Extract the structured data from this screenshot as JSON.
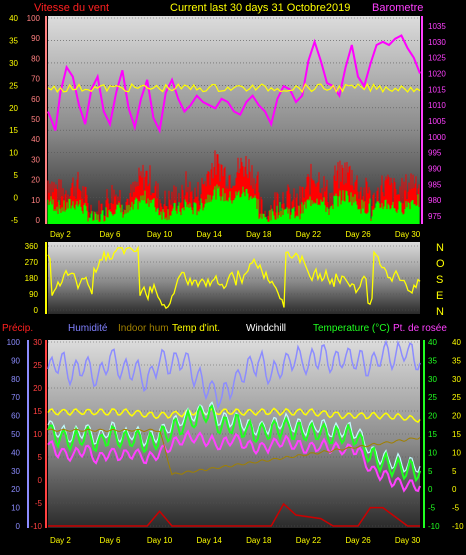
{
  "header": {
    "wind_speed_label": "Vitesse du vent",
    "title": "Current last 30 days 31 Octobre2019",
    "barometer_label": "Barometre"
  },
  "direction_letters": [
    "N",
    "O",
    "S",
    "E",
    "N"
  ],
  "bottom_legend": [
    {
      "label": "Précip.",
      "color": "#ff2020"
    },
    {
      "label": "Humidité",
      "color": "#8080ff"
    },
    {
      "label": "Indoor hum",
      "color": "#a08000"
    },
    {
      "label": "Temp d'int.",
      "color": "#ffff00"
    },
    {
      "label": "Windchill",
      "color": "#ffffff"
    },
    {
      "label": "Temperature (°C)",
      "color": "#20ff20"
    },
    {
      "label": "Pt. de rosée",
      "color": "#ff40ff"
    }
  ],
  "colors": {
    "wind_gust": "#ff0000",
    "wind_avg": "#00ff00",
    "barometer": "#ff00ff",
    "direction": "#ffff00",
    "humidity": "#8c8cff",
    "indoor_hum": "#a08000",
    "indoor_temp": "#ffff00",
    "windchill": "#c0ffff",
    "temperature": "#20ff20",
    "dewpoint": "#ff40ff",
    "precip": "#cc0000"
  },
  "chart_data": [
    {
      "type": "line",
      "name": "wind-barometer",
      "x_tick_labels": [
        "Day 2",
        "Day 6",
        "Day 10",
        "Day 14",
        "Day 18",
        "Day 22",
        "Day 26",
        "Day 30"
      ],
      "left_axis_mph": [
        "40",
        "35",
        "30",
        "25",
        "20",
        "15",
        "10",
        "5",
        "0",
        "-5"
      ],
      "left_axis_kmh": [
        "100",
        "90",
        "80",
        "70",
        "60",
        "50",
        "40",
        "30",
        "20",
        "10",
        "0"
      ],
      "right_axis_hpa": [
        "1035",
        "1030",
        "1025",
        "1020",
        "1015",
        "1010",
        "1005",
        "1000",
        "995",
        "990",
        "985",
        "980",
        "975"
      ],
      "xlim": [
        1,
        31
      ],
      "series": [
        {
          "key": "barometer",
          "x": [
            1,
            1.6,
            2,
            2.5,
            3,
            3.5,
            4,
            4.5,
            5,
            5.5,
            6,
            6.5,
            7,
            7.5,
            8,
            8.5,
            9,
            9.5,
            10,
            10.5,
            11,
            11.5,
            12,
            12.5,
            13,
            13.5,
            14,
            14.5,
            15,
            15.5,
            16,
            16.5,
            17,
            17.5,
            18,
            18.5,
            19,
            19.5,
            20,
            20.5,
            21,
            21.5,
            22,
            22.5,
            23,
            23.5,
            24,
            24.5,
            25,
            25.5,
            26,
            26.5,
            27,
            27.5,
            28,
            28.5,
            29,
            29.5,
            30,
            30.5,
            31
          ],
          "y": [
            1008,
            1002,
            1014,
            1022,
            1019,
            1010,
            1004,
            1015,
            1019,
            1008,
            1004,
            1014,
            1021,
            1009,
            1003,
            1012,
            1018,
            1006,
            1002,
            1014,
            1018,
            1012,
            1008,
            1010,
            1013,
            1011,
            1010,
            1009,
            1012,
            1011,
            1008,
            1007,
            1011,
            1013,
            1010,
            1008,
            1004,
            1012,
            1016,
            1015,
            1011,
            1013,
            1024,
            1030,
            1024,
            1017,
            1016,
            1013,
            1022,
            1029,
            1019,
            1016,
            1023,
            1029,
            1030,
            1029,
            1031,
            1032,
            1028,
            1025,
            1020
          ]
        },
        {
          "key": "direction_avg_line",
          "x": [
            1,
            31
          ],
          "y": [
            10,
            10
          ]
        }
      ]
    },
    {
      "type": "line",
      "name": "wind-direction",
      "y_tick_labels": [
        "360",
        "270",
        "180",
        "90",
        "0"
      ],
      "ylim": [
        0,
        360
      ]
    },
    {
      "type": "line",
      "name": "temperature-humidity",
      "x_tick_labels": [
        "Day 2",
        "Day 6",
        "Day 10",
        "Day 14",
        "Day 18",
        "Day 22",
        "Day 26",
        "Day 30"
      ],
      "left_axis_humidity": [
        "100",
        "90",
        "80",
        "70",
        "60",
        "50",
        "40",
        "30",
        "20",
        "10",
        "0"
      ],
      "left_axis_temp": [
        "30",
        "25",
        "20",
        "15",
        "10",
        "5",
        "0",
        "-5",
        "-10"
      ],
      "right_axis_temp": [
        "40",
        "35",
        "30",
        "25",
        "20",
        "15",
        "10",
        "5",
        "0",
        "-5",
        "-10"
      ],
      "xlim": [
        1,
        31
      ],
      "series": [
        {
          "key": "humidity",
          "x": [
            1,
            2,
            3,
            4,
            5,
            6,
            7,
            8,
            9,
            10,
            11,
            12,
            13,
            14,
            15,
            16,
            17,
            18,
            19,
            20,
            21,
            22,
            23,
            24,
            25,
            26,
            27,
            28,
            29,
            30,
            31
          ],
          "y": [
            85,
            90,
            82,
            88,
            80,
            92,
            84,
            86,
            78,
            90,
            88,
            92,
            80,
            75,
            70,
            78,
            85,
            90,
            82,
            88,
            92,
            88,
            94,
            88,
            92,
            90,
            86,
            94,
            92,
            96,
            88
          ]
        },
        {
          "key": "indoor_temp",
          "x": [
            1,
            4,
            7,
            10,
            13,
            16,
            19,
            22,
            25,
            28,
            31
          ],
          "y": [
            21,
            21,
            21,
            20,
            21,
            21,
            21,
            21,
            20,
            20,
            19
          ]
        },
        {
          "key": "temperature",
          "x": [
            1,
            2,
            3,
            4,
            5,
            6,
            7,
            8,
            9,
            10,
            11,
            12,
            13,
            14,
            15,
            16,
            17,
            18,
            19,
            20,
            21,
            22,
            23,
            24,
            25,
            26,
            27,
            28,
            29,
            30,
            31
          ],
          "y": [
            16,
            14,
            13,
            15,
            12,
            15,
            13,
            14,
            12,
            14,
            16,
            18,
            19,
            21,
            17,
            18,
            16,
            15,
            16,
            17,
            16,
            15,
            16,
            14,
            15,
            14,
            9,
            7,
            6,
            5,
            5
          ]
        },
        {
          "key": "dewpoint",
          "x": [
            1,
            2,
            3,
            4,
            5,
            6,
            7,
            8,
            9,
            10,
            11,
            12,
            13,
            14,
            15,
            16,
            17,
            18,
            19,
            20,
            21,
            22,
            23,
            24,
            25,
            26,
            27,
            28,
            29,
            30,
            31
          ],
          "y": [
            12,
            10,
            9,
            11,
            8,
            10,
            9,
            10,
            8,
            10,
            12,
            14,
            14,
            13,
            12,
            14,
            12,
            11,
            12,
            13,
            12,
            11,
            12,
            11,
            11,
            11,
            5,
            4,
            2,
            1,
            1
          ]
        },
        {
          "key": "precip",
          "x": [
            1,
            8,
            9,
            10,
            11,
            19,
            20,
            21,
            23,
            24,
            26,
            27,
            28,
            30,
            31
          ],
          "y": [
            0,
            0,
            0,
            4,
            0,
            0,
            6,
            3,
            2,
            0,
            0,
            5,
            5,
            0,
            0
          ]
        }
      ]
    }
  ]
}
